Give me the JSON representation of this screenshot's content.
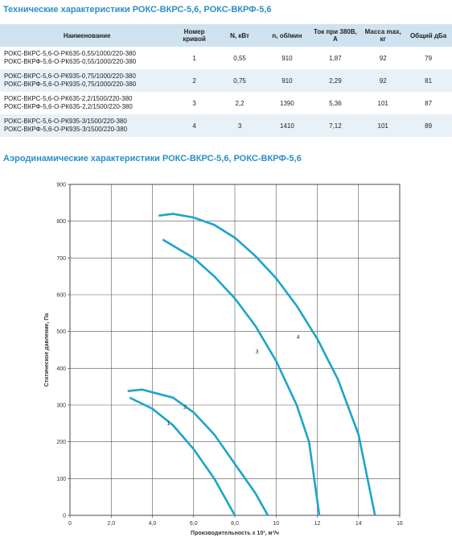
{
  "header": {
    "title": "Технические характеристики РОКС-ВКРС-5,6, РОКС-ВКРФ-5,6"
  },
  "table": {
    "columns": [
      "Наименование",
      "Номер кривой",
      "N, кВт",
      "n, об/мин",
      "Ток при 380В, А",
      "Масса max, кг",
      "Общий дБа"
    ],
    "rows": [
      [
        [
          "РОКС-ВКРС-5,6-О-РК635-0,55/1000/220-380",
          "РОКС-ВКРФ-5,6-О-РК635-0,55/1000/220-380"
        ],
        "1",
        "0,55",
        "910",
        "1,87",
        "92",
        "79"
      ],
      [
        [
          "РОКС-ВКРС-5,6-О-РК935-0,75/1000/220-380",
          "РОКС-ВКРФ-5,6-О-РК935-0,75/1000/220-380"
        ],
        "2",
        "0,75",
        "910",
        "2,29",
        "92",
        "81"
      ],
      [
        [
          "РОКС-ВКРС-5,6-О-РК635-2,2/1500/220-380",
          "РОКС-ВКРФ-5,6-О-РК635-2,2/1500/220-380"
        ],
        "3",
        "2,2",
        "1390",
        "5,36",
        "101",
        "87"
      ],
      [
        [
          "РОКС-ВКРС-5,6-О-РК935-3/1500/220-380",
          "РОКС-ВКРФ-5,6-О-РК935-3/1500/220-380"
        ],
        "4",
        "3",
        "1410",
        "7,12",
        "101",
        "89"
      ]
    ]
  },
  "section_title": "Аэродинамические характеристики РОКС-ВКРС-5,6, РОКС-ВКРФ-5,6",
  "chart_data": {
    "type": "line",
    "x_label": "Производительность х 10³, м³/ч",
    "y_label": "Статическое давление, Па",
    "xlim": [
      0,
      16
    ],
    "ylim": [
      0,
      900
    ],
    "xticks": [
      0,
      {
        "value": 2,
        "label": "2,0"
      },
      {
        "value": 4,
        "label": "4,0"
      },
      {
        "value": 6,
        "label": "6,0"
      },
      {
        "value": 8,
        "label": "8,0"
      },
      10,
      12,
      14,
      16
    ],
    "yticks": [
      0,
      100,
      200,
      300,
      400,
      500,
      600,
      700,
      800,
      900
    ],
    "grid": true,
    "series": [
      {
        "name": "1",
        "color": "#1ba5c9",
        "x": [
          2.9,
          4,
          5,
          6,
          7,
          8
        ],
        "values": [
          320,
          290,
          245,
          180,
          100,
          0
        ]
      },
      {
        "name": "2",
        "color": "#1ba5c9",
        "x": [
          2.8,
          3.5,
          5,
          6,
          7,
          8,
          9,
          9.6
        ],
        "values": [
          338,
          342,
          320,
          280,
          220,
          140,
          60,
          0
        ]
      },
      {
        "name": "3",
        "color": "#1ba5c9",
        "x": [
          4.5,
          6,
          7,
          8,
          9,
          10,
          11,
          11.6,
          12.1
        ],
        "values": [
          750,
          700,
          650,
          590,
          515,
          420,
          300,
          200,
          0
        ]
      },
      {
        "name": "4",
        "color": "#1ba5c9",
        "x": [
          4.3,
          5,
          6,
          7,
          8,
          9,
          10,
          11,
          12,
          13,
          14,
          14.8
        ],
        "values": [
          815,
          820,
          810,
          790,
          755,
          705,
          645,
          570,
          480,
          370,
          220,
          0
        ]
      }
    ]
  }
}
